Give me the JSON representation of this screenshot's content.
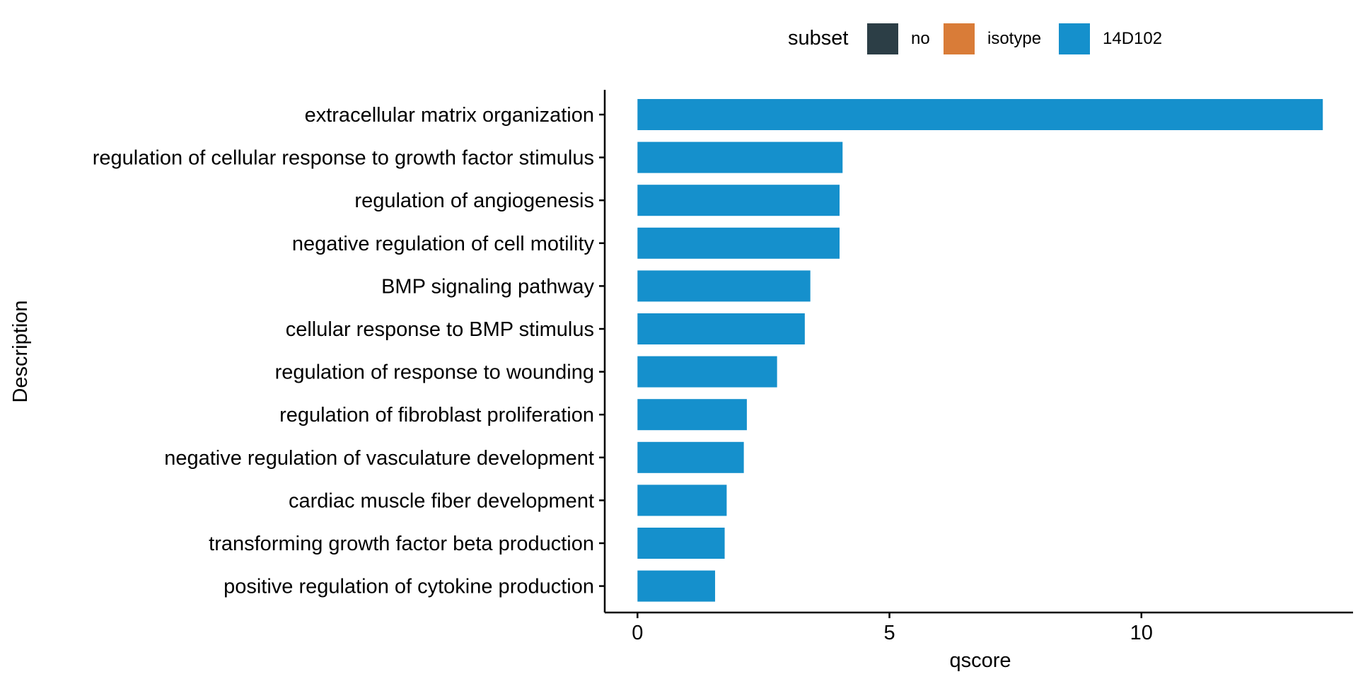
{
  "chart_data": {
    "type": "bar",
    "orientation": "horizontal",
    "xlabel": "qscore",
    "ylabel": "Description",
    "xlim": [
      -0.65,
      14.2
    ],
    "x_ticks": [
      0,
      5,
      10
    ],
    "grid": false,
    "legend": {
      "title": "subset",
      "position": "top",
      "entries": [
        {
          "label": "no",
          "color": "#2C3E46"
        },
        {
          "label": "isotype",
          "color": "#D97C38"
        },
        {
          "label": "14D102",
          "color": "#1590CC"
        }
      ]
    },
    "categories": [
      "extracellular matrix organization",
      "regulation of cellular response to growth factor stimulus",
      "regulation of angiogenesis",
      "negative regulation of cell motility",
      "BMP signaling pathway",
      "cellular response to BMP stimulus",
      "regulation of response to wounding",
      "regulation of fibroblast proliferation",
      "negative regulation of vasculature development",
      "cardiac muscle fiber development",
      "transforming growth factor beta production",
      "positive regulation of cytokine production"
    ],
    "series": [
      {
        "name": "14D102",
        "color": "#1590CC",
        "values": [
          13.6,
          4.07,
          4.01,
          4.01,
          3.43,
          3.32,
          2.77,
          2.17,
          2.11,
          1.77,
          1.73,
          1.54
        ]
      }
    ]
  }
}
